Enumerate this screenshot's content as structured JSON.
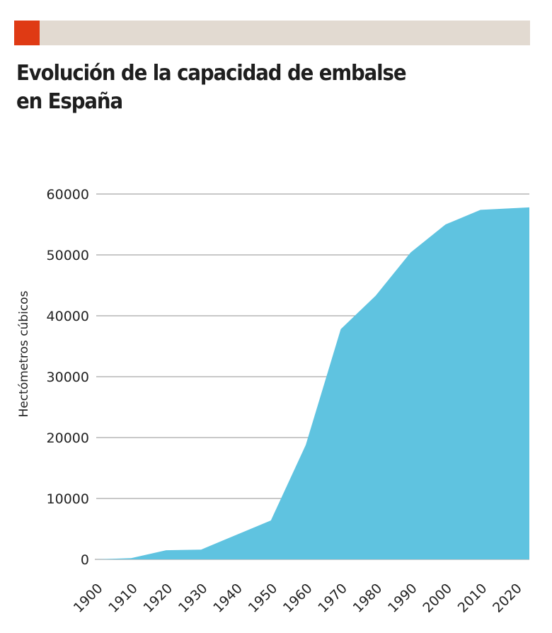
{
  "header": {
    "accent_color": "#df3a14",
    "bar_color": "#e2dad1",
    "title_line1": "Evolución de la capacidad de embalse",
    "title_line2": "en España"
  },
  "chart_data": {
    "type": "area",
    "title": "Evolución de la capacidad de embalse en España",
    "xlabel": "",
    "ylabel": "Hectómetros cúbicos",
    "x": [
      1900,
      1910,
      1920,
      1930,
      1940,
      1950,
      1960,
      1970,
      1980,
      1990,
      2000,
      2010,
      2024
    ],
    "series": [
      {
        "name": "Capacidad de embalse",
        "color": "#5fc3e0",
        "values": [
          0,
          200,
          1500,
          1600,
          4000,
          6400,
          18800,
          37800,
          43300,
          50400,
          55000,
          57400,
          57800
        ]
      }
    ],
    "xlim": [
      1900,
      2024
    ],
    "ylim": [
      0,
      60000
    ],
    "x_ticks": [
      1900,
      1910,
      1920,
      1930,
      1940,
      1950,
      1960,
      1970,
      1980,
      1990,
      2000,
      2010,
      2020
    ],
    "y_ticks": [
      0,
      10000,
      20000,
      30000,
      40000,
      50000,
      60000
    ],
    "grid": true,
    "legend": "none"
  }
}
